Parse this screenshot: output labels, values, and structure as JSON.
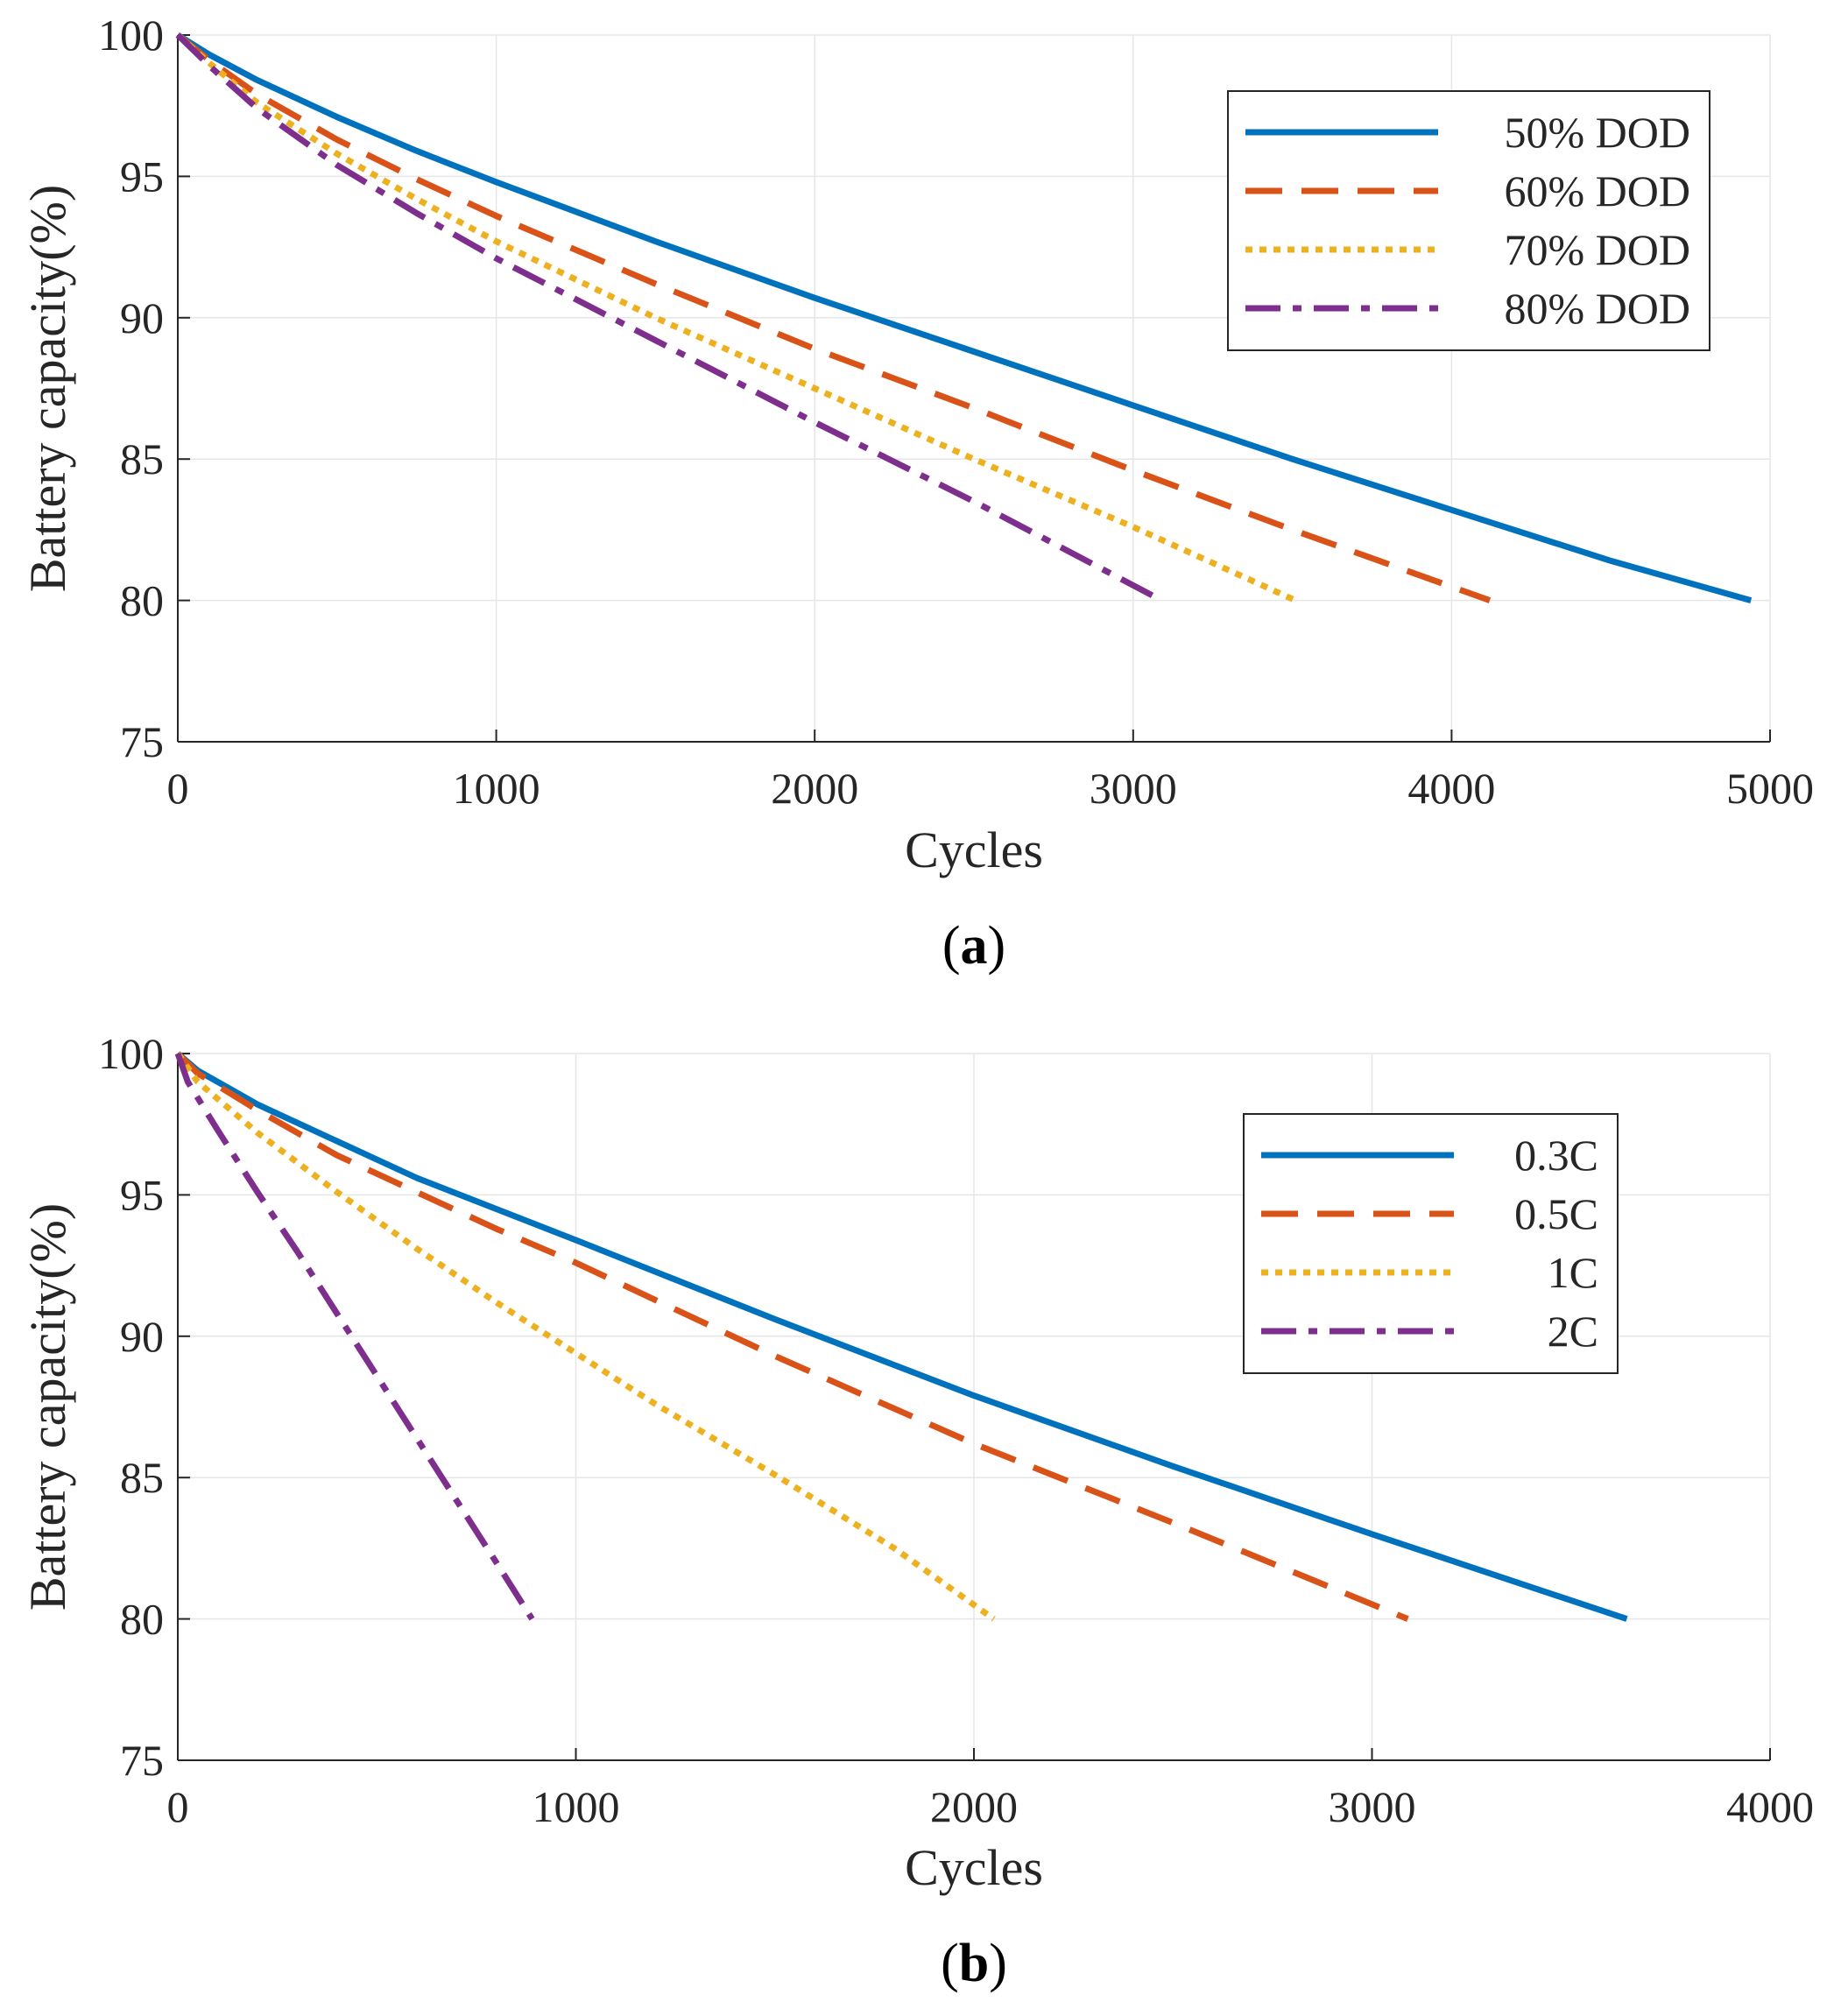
{
  "chart_data": [
    {
      "id": "a",
      "type": "line",
      "caption": "a",
      "xlabel": "Cycles",
      "ylabel": "Battery capacity(%)",
      "xlim": [
        0,
        5000
      ],
      "ylim": [
        75,
        100
      ],
      "xticks": [
        0,
        1000,
        2000,
        3000,
        4000,
        5000
      ],
      "yticks": [
        75,
        80,
        85,
        90,
        95,
        100
      ],
      "grid": true,
      "legend_position": "top-right",
      "series": [
        {
          "name": "50% DOD",
          "style": "solid",
          "color": "#0072BD",
          "x": [
            0,
            100,
            250,
            500,
            750,
            1000,
            1500,
            2000,
            2500,
            3000,
            3500,
            4000,
            4500,
            4940
          ],
          "y": [
            100,
            99.3,
            98.4,
            97.1,
            95.9,
            94.8,
            92.7,
            90.7,
            88.8,
            86.9,
            85.0,
            83.2,
            81.4,
            80.0
          ]
        },
        {
          "name": "60% DOD",
          "style": "dashed",
          "color": "#D95319",
          "x": [
            0,
            100,
            250,
            500,
            750,
            1000,
            1500,
            2000,
            2500,
            3000,
            3500,
            4120
          ],
          "y": [
            100,
            99.1,
            97.9,
            96.3,
            94.9,
            93.6,
            91.2,
            88.9,
            86.8,
            84.6,
            82.5,
            80.0
          ]
        },
        {
          "name": "70% DOD",
          "style": "dotted",
          "color": "#EDB120",
          "x": [
            0,
            100,
            250,
            500,
            750,
            1000,
            1500,
            2000,
            2500,
            3000,
            3510
          ],
          "y": [
            100,
            99.0,
            97.6,
            95.8,
            94.2,
            92.7,
            90.0,
            87.5,
            85.0,
            82.6,
            80.0
          ]
        },
        {
          "name": "80% DOD",
          "style": "dashdot",
          "color": "#7E2F8E",
          "x": [
            0,
            100,
            250,
            500,
            750,
            1000,
            1500,
            2000,
            2500,
            3090
          ],
          "y": [
            100,
            98.9,
            97.4,
            95.4,
            93.7,
            92.1,
            89.2,
            86.3,
            83.5,
            80.0
          ]
        }
      ]
    },
    {
      "id": "b",
      "type": "line",
      "caption": "b",
      "xlabel": "Cycles",
      "ylabel": "Battery capacity(%)",
      "xlim": [
        0,
        4000
      ],
      "ylim": [
        75,
        100
      ],
      "xticks": [
        0,
        1000,
        2000,
        3000,
        4000
      ],
      "yticks": [
        75,
        80,
        85,
        90,
        95,
        100
      ],
      "grid": true,
      "legend_position": "top-right",
      "series": [
        {
          "name": "0.3C",
          "style": "solid",
          "color": "#0072BD",
          "x": [
            0,
            50,
            200,
            400,
            600,
            800,
            1000,
            1500,
            2000,
            2500,
            3000,
            3640
          ],
          "y": [
            100,
            99.4,
            98.2,
            96.9,
            95.6,
            94.5,
            93.4,
            90.6,
            87.9,
            85.4,
            83.0,
            80.0
          ]
        },
        {
          "name": "0.5C",
          "style": "dashed",
          "color": "#D95319",
          "x": [
            0,
            50,
            200,
            400,
            600,
            800,
            1000,
            1500,
            2000,
            2500,
            3090
          ],
          "y": [
            100,
            99.3,
            98.0,
            96.4,
            95.1,
            93.8,
            92.6,
            89.3,
            86.2,
            83.4,
            80.0
          ]
        },
        {
          "name": "1C",
          "style": "dotted",
          "color": "#EDB120",
          "x": [
            0,
            50,
            200,
            400,
            600,
            800,
            1000,
            1200,
            1500,
            1800,
            2050
          ],
          "y": [
            100,
            99.0,
            97.2,
            95.1,
            93.1,
            91.2,
            89.4,
            87.6,
            85.1,
            82.5,
            80.0
          ]
        },
        {
          "name": "2C",
          "style": "dashdot",
          "color": "#7E2F8E",
          "x": [
            0,
            25,
            100,
            200,
            300,
            400,
            500,
            600,
            700,
            800,
            890
          ],
          "y": [
            100,
            99.0,
            97.3,
            95.1,
            93.0,
            90.8,
            88.6,
            86.4,
            84.2,
            82.0,
            80.0
          ]
        }
      ]
    }
  ]
}
